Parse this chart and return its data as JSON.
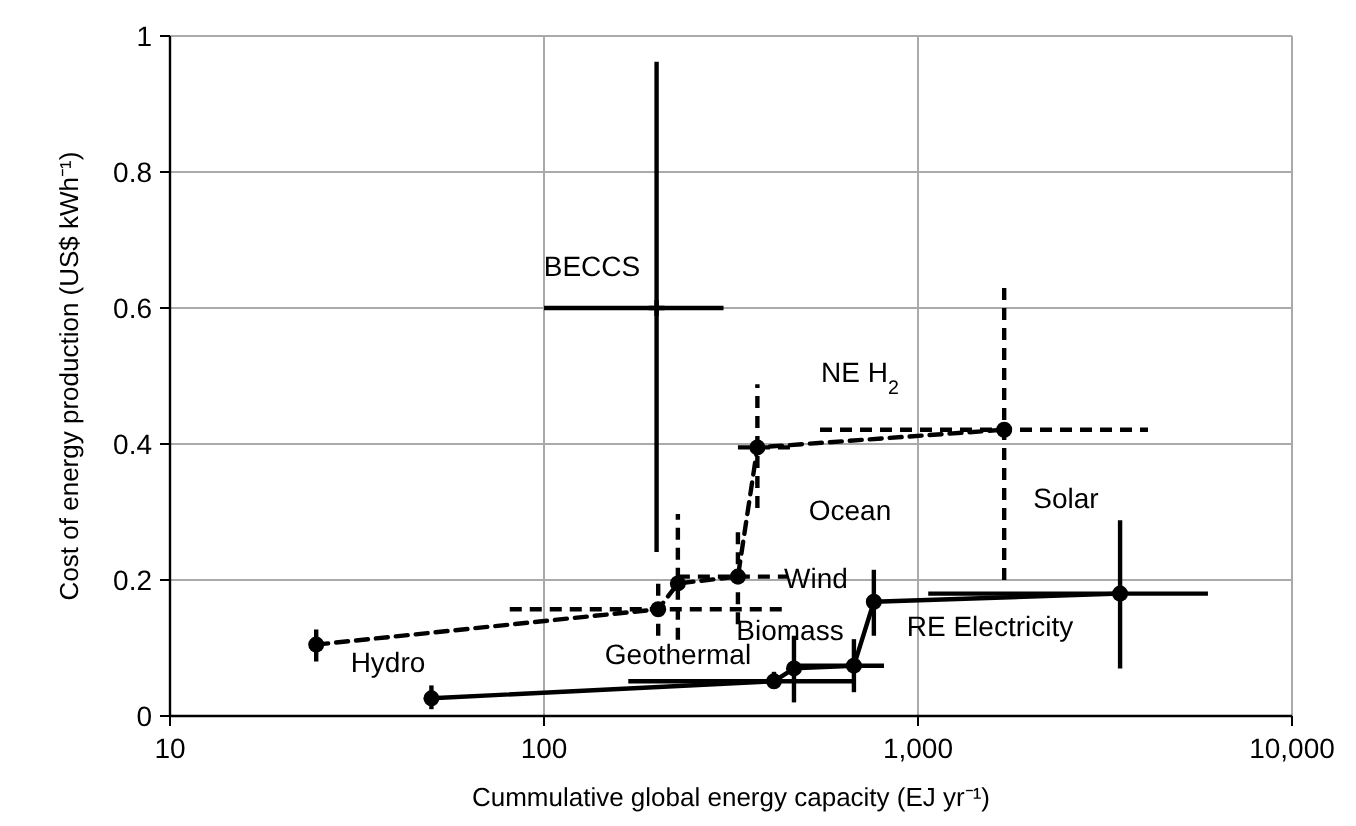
{
  "chart_data": {
    "type": "scatter",
    "xlabel": "Cummulative global energy capacity (EJ yr⁻¹)",
    "ylabel": "Cost of energy production (US$ kWh⁻¹)",
    "log": "x",
    "xlim": [
      10,
      10000
    ],
    "xticks": [
      10,
      100,
      {
        "value": 1000,
        "label": "1,000"
      },
      {
        "value": 10000,
        "label": "10,000"
      }
    ],
    "ylim": [
      0,
      1
    ],
    "yticks": [
      0,
      0.2,
      0.4,
      0.6,
      0.8,
      1
    ],
    "grid": true,
    "series": [
      {
        "type": "line",
        "color": "#000000",
        "line_style": "dashed",
        "marker": "circle",
        "x": [
          24.6,
          202,
          228,
          330,
          372,
          1700
        ],
        "values": [
          0.105,
          0.157,
          0.195,
          0.205,
          0.395,
          0.421
        ],
        "errors": [
          [
            0.08,
            0.135
          ],
          [
            0.118,
            0.206
          ],
          [
            0.112,
            0.297
          ],
          [
            0.135,
            0.282
          ],
          [
            0.306,
            0.488
          ],
          [
            0.2,
            0.635
          ]
        ],
        "xerrors": [
          null,
          [
            81,
            447
          ],
          null,
          [
            228,
            447
          ],
          [
            330,
            470
          ],
          [
            547,
            4120
          ]
        ]
      },
      {
        "type": "line",
        "color": "#000000",
        "line_style": "solid",
        "marker": "circle",
        "x": [
          50,
          412,
          466,
          674,
          762,
          3470
        ],
        "values": [
          0.026,
          0.051,
          0.07,
          0.074,
          0.168,
          0.18
        ],
        "errors": [
          [
            0.01,
            0.045
          ],
          [
            0.04,
            0.065
          ],
          [
            0.02,
            0.118
          ],
          [
            0.035,
            0.113
          ],
          [
            0.118,
            0.215
          ],
          [
            0.07,
            0.288
          ]
        ],
        "xerrors": [
          null,
          [
            168,
            667
          ],
          null,
          [
            466,
            811
          ],
          null,
          [
            1065,
            5960
          ]
        ]
      },
      {
        "color": "#000000",
        "line_style": "solid",
        "marker": "cross",
        "x": [
          200
        ],
        "values": [
          0.6
        ],
        "errors": [
          [
            0.241,
            0.962
          ]
        ],
        "xerrors": [
          [
            100,
            302
          ]
        ]
      }
    ],
    "annotations": [
      "BECCS",
      "NE H$_{2}$",
      "Ocean",
      "Solar",
      "Wind",
      "Biomass",
      "RE Electricity",
      "Geothermal",
      "Hydro"
    ]
  }
}
